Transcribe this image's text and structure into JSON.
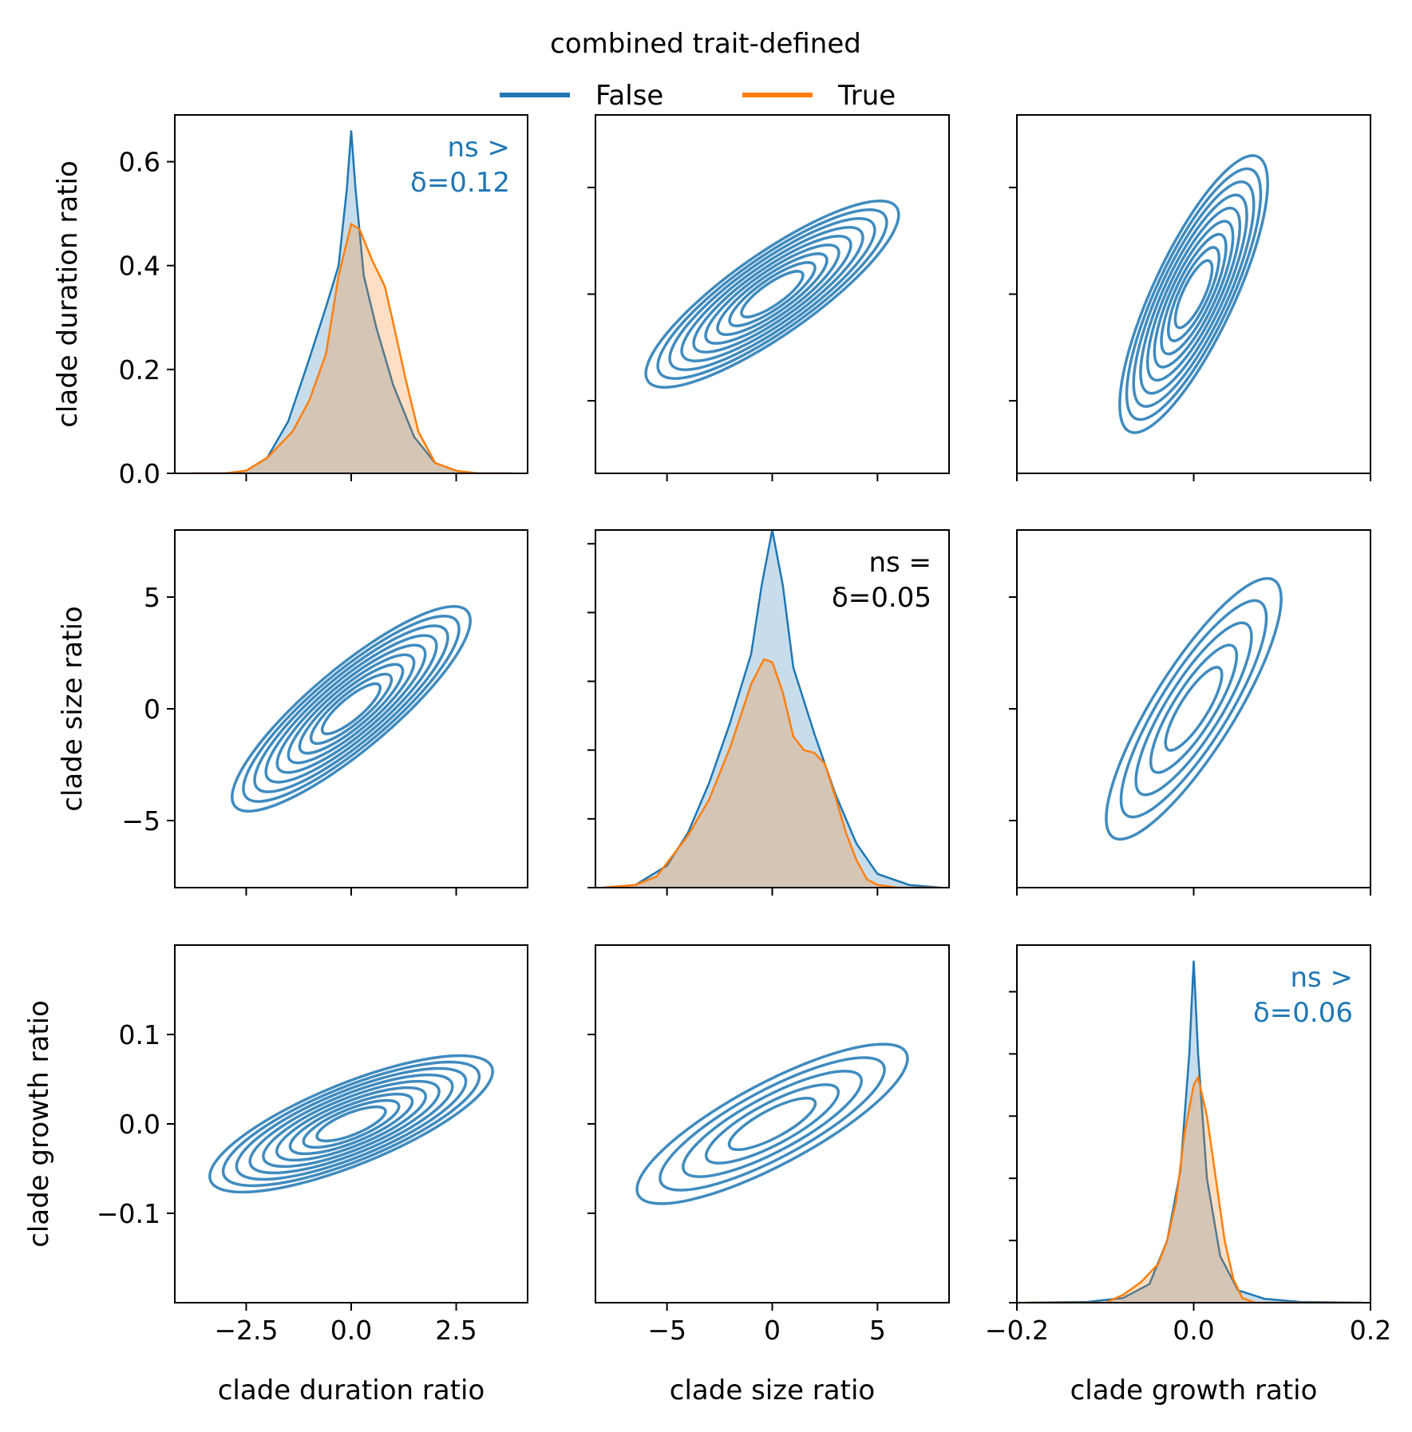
{
  "legend": {
    "title": "combined trait-defined",
    "entries": [
      {
        "label": "False",
        "color": "#1f77b4"
      },
      {
        "label": "True",
        "color": "#ff7f0e"
      }
    ],
    "placement": "top-center"
  },
  "variables": [
    "clade duration ratio",
    "clade size ratio",
    "clade growth ratio"
  ],
  "chart_data": [
    {
      "type": "area",
      "panel": "row1-col1",
      "variable": "clade duration ratio",
      "ylabel": "clade duration ratio",
      "annotation": {
        "lines": [
          "ns >",
          "δ=0.12"
        ],
        "color": "#1f77b4"
      },
      "xlim": [
        -4.2,
        4.2
      ],
      "ylim": [
        0,
        0.69
      ],
      "x_ticks": [
        -2.5,
        0.0,
        2.5
      ],
      "y_ticks": [
        0.0,
        0.2,
        0.4,
        0.6
      ],
      "y_tick_labels": [
        "0.0",
        "0.2",
        "0.4",
        "0.6"
      ],
      "series": [
        {
          "name": "False",
          "x": [
            -3.8,
            -3.0,
            -2.5,
            -2.0,
            -1.5,
            -1.0,
            -0.6,
            -0.3,
            -0.1,
            0.0,
            0.1,
            0.3,
            0.6,
            1.0,
            1.5,
            2.0,
            2.5,
            3.0,
            3.8
          ],
          "y": [
            0.0,
            0.0,
            0.005,
            0.03,
            0.1,
            0.22,
            0.32,
            0.4,
            0.55,
            0.66,
            0.55,
            0.38,
            0.28,
            0.17,
            0.07,
            0.02,
            0.005,
            0.0,
            0.0
          ]
        },
        {
          "name": "True",
          "x": [
            -3.8,
            -3.0,
            -2.5,
            -2.0,
            -1.7,
            -1.4,
            -1.0,
            -0.6,
            -0.3,
            0.0,
            0.2,
            0.5,
            0.8,
            1.0,
            1.3,
            1.6,
            2.0,
            2.5,
            3.0,
            3.8
          ],
          "y": [
            0.0,
            0.0,
            0.005,
            0.03,
            0.055,
            0.08,
            0.14,
            0.23,
            0.38,
            0.48,
            0.47,
            0.41,
            0.36,
            0.29,
            0.18,
            0.08,
            0.02,
            0.005,
            0.0,
            0.0
          ]
        }
      ]
    },
    {
      "type": "contour",
      "panel": "row1-col2",
      "x_variable": "clade size ratio",
      "y_variable": "clade duration ratio",
      "xlim": [
        -8.4,
        8.4
      ],
      "ylim": [
        -4.2,
        4.2
      ],
      "x_ticks": [
        -5,
        0,
        5
      ],
      "y_ticks": [
        -2.5,
        0.0,
        2.5
      ],
      "series": [
        {
          "name": "False",
          "center": [
            0.0,
            0.0
          ],
          "orientation_deg": 35,
          "levels": 9
        }
      ]
    },
    {
      "type": "contour",
      "panel": "row1-col3",
      "x_variable": "clade growth ratio",
      "y_variable": "clade duration ratio",
      "xlim": [
        -0.2,
        0.2
      ],
      "ylim": [
        -4.2,
        4.2
      ],
      "x_ticks": [
        -0.2,
        0.0,
        0.2
      ],
      "y_ticks": [
        -2.5,
        0.0,
        2.5
      ],
      "series": [
        {
          "name": "False",
          "center": [
            0.0,
            0.0
          ],
          "orientation_deg": 65,
          "levels": 9
        }
      ]
    },
    {
      "type": "contour",
      "panel": "row2-col1",
      "x_variable": "clade duration ratio",
      "y_variable": "clade size ratio",
      "ylabel": "clade size ratio",
      "xlim": [
        -4.2,
        4.2
      ],
      "ylim": [
        -8,
        8
      ],
      "x_ticks": [
        -2.5,
        0.0,
        2.5
      ],
      "y_ticks": [
        -5,
        0,
        5
      ],
      "y_tick_labels": [
        "−5",
        "0",
        "5"
      ],
      "series": [
        {
          "name": "False",
          "center": [
            0.0,
            0.0
          ],
          "orientation_deg": 40,
          "levels": 9
        }
      ]
    },
    {
      "type": "area",
      "panel": "row2-col2",
      "variable": "clade size ratio",
      "annotation": {
        "lines": [
          "ns =",
          "δ=0.05"
        ],
        "color": "#000000"
      },
      "xlim": [
        -8.4,
        8.4
      ],
      "ylim": [
        0,
        0.13
      ],
      "x_ticks": [
        -5,
        0,
        5
      ],
      "y_ticks": [
        0.0,
        0.025,
        0.05,
        0.075,
        0.1,
        0.125
      ],
      "series": [
        {
          "name": "False",
          "x": [
            -8,
            -6.5,
            -5,
            -4,
            -3,
            -2,
            -1,
            -0.5,
            0,
            0.5,
            1,
            2,
            3,
            4,
            5,
            6.5,
            8
          ],
          "y": [
            0.0,
            0.001,
            0.008,
            0.02,
            0.038,
            0.06,
            0.085,
            0.11,
            0.13,
            0.11,
            0.08,
            0.056,
            0.034,
            0.016,
            0.005,
            0.001,
            0.0
          ]
        },
        {
          "name": "True",
          "x": [
            -8,
            -6.5,
            -5.5,
            -5,
            -4,
            -3,
            -2,
            -1,
            -0.4,
            0,
            0.5,
            1,
            1.5,
            2,
            2.5,
            3,
            3.5,
            4,
            4.5,
            5,
            6,
            8
          ],
          "y": [
            0.0,
            0.001,
            0.004,
            0.009,
            0.019,
            0.032,
            0.051,
            0.074,
            0.083,
            0.082,
            0.071,
            0.055,
            0.05,
            0.049,
            0.045,
            0.033,
            0.02,
            0.01,
            0.003,
            0.001,
            0.0,
            0.0
          ]
        }
      ]
    },
    {
      "type": "contour",
      "panel": "row2-col3",
      "x_variable": "clade growth ratio",
      "y_variable": "clade size ratio",
      "xlim": [
        -0.2,
        0.2
      ],
      "ylim": [
        -8,
        8
      ],
      "x_ticks": [
        -0.2,
        0.0,
        0.2
      ],
      "y_ticks": [
        -5,
        0,
        5
      ],
      "series": [
        {
          "name": "False",
          "center": [
            0.0,
            0.0
          ],
          "orientation_deg": 58,
          "levels": 5
        }
      ]
    },
    {
      "type": "contour",
      "panel": "row3-col1",
      "x_variable": "clade duration ratio",
      "y_variable": "clade growth ratio",
      "xlabel": "clade duration ratio",
      "ylabel": "clade growth ratio",
      "xlim": [
        -4.2,
        4.2
      ],
      "ylim": [
        -0.2,
        0.2
      ],
      "x_ticks": [
        -2.5,
        0.0,
        2.5
      ],
      "x_tick_labels": [
        "−2.5",
        "0.0",
        "2.5"
      ],
      "y_ticks": [
        -0.1,
        0.0,
        0.1
      ],
      "y_tick_labels": [
        "−0.1",
        "0.0",
        "0.1"
      ],
      "series": [
        {
          "name": "False",
          "center": [
            0.0,
            0.0
          ],
          "orientation_deg": 22,
          "levels": 9
        }
      ]
    },
    {
      "type": "contour",
      "panel": "row3-col2",
      "x_variable": "clade size ratio",
      "y_variable": "clade growth ratio",
      "xlabel": "clade size ratio",
      "xlim": [
        -8.4,
        8.4
      ],
      "ylim": [
        -0.2,
        0.2
      ],
      "x_ticks": [
        -5,
        0,
        5
      ],
      "x_tick_labels": [
        "−5",
        "0",
        "5"
      ],
      "y_ticks": [
        -0.1,
        0.0,
        0.1
      ],
      "series": [
        {
          "name": "False",
          "center": [
            0.0,
            0.0
          ],
          "orientation_deg": 28,
          "levels": 5
        }
      ]
    },
    {
      "type": "area",
      "panel": "row3-col3",
      "variable": "clade growth ratio",
      "xlabel": "clade growth ratio",
      "annotation": {
        "lines": [
          "ns >",
          "δ=0.06"
        ],
        "color": "#1f77b4"
      },
      "xlim": [
        -0.2,
        0.2
      ],
      "ylim": [
        0,
        23
      ],
      "x_ticks": [
        -0.2,
        0.0,
        0.2
      ],
      "x_tick_labels": [
        "−0.2",
        "0.0",
        "0.2"
      ],
      "y_ticks": [
        0,
        4,
        8,
        12,
        16,
        20
      ],
      "series": [
        {
          "name": "False",
          "x": [
            -0.19,
            -0.12,
            -0.08,
            -0.05,
            -0.03,
            -0.015,
            -0.005,
            0.0,
            0.005,
            0.015,
            0.03,
            0.05,
            0.08,
            0.12,
            0.19
          ],
          "y": [
            0.0,
            0.05,
            0.3,
            1.2,
            4.0,
            8.5,
            16.0,
            22.0,
            16.0,
            8.0,
            3.0,
            0.8,
            0.25,
            0.05,
            0.0
          ]
        },
        {
          "name": "True",
          "x": [
            -0.19,
            -0.1,
            -0.08,
            -0.06,
            -0.04,
            -0.03,
            -0.02,
            -0.01,
            0.0,
            0.005,
            0.015,
            0.025,
            0.035,
            0.045,
            0.055,
            0.07,
            0.19
          ],
          "y": [
            0.0,
            0.0,
            0.5,
            1.3,
            2.5,
            4.0,
            6.5,
            11.0,
            14.0,
            14.5,
            12.0,
            8.0,
            4.0,
            1.5,
            0.3,
            0.0,
            0.0
          ]
        }
      ]
    }
  ]
}
